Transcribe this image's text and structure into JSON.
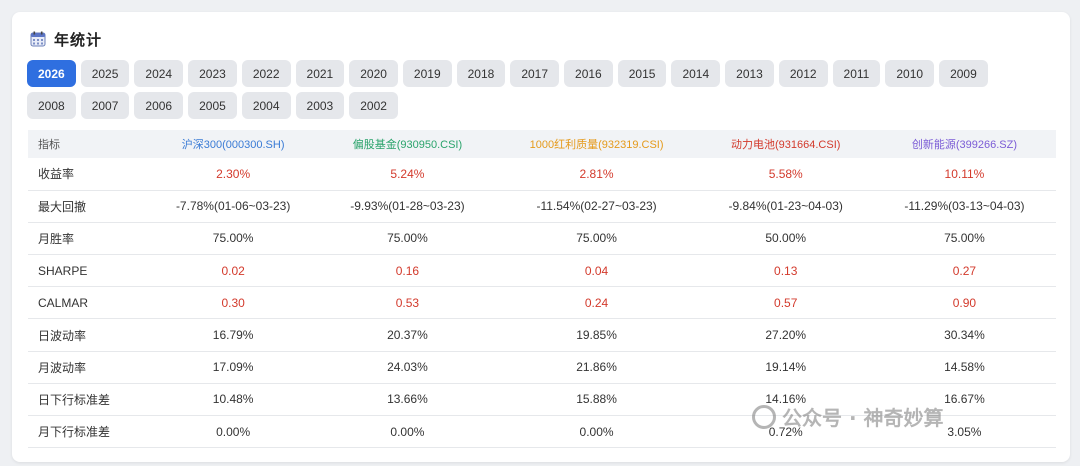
{
  "header": {
    "title": "年统计",
    "icon": "calendar-icon"
  },
  "years": [
    "2026",
    "2025",
    "2024",
    "2023",
    "2022",
    "2021",
    "2020",
    "2019",
    "2018",
    "2017",
    "2016",
    "2015",
    "2014",
    "2013",
    "2012",
    "2011",
    "2010",
    "2009",
    "2008",
    "2007",
    "2006",
    "2005",
    "2004",
    "2003",
    "2002"
  ],
  "active_year": "2026",
  "table": {
    "columns": [
      "指标",
      "沪深300(000300.SH)",
      "偏股基金(930950.CSI)",
      "1000红利质量(932319.CSI)",
      "动力电池(931664.CSI)",
      "创新能源(399266.SZ)"
    ],
    "column_colors": [
      "#555555",
      "#3a7bd5",
      "#2aa36b",
      "#e59a1b",
      "#d33a2c",
      "#7b5cd6"
    ],
    "rows": [
      {
        "label": "收益率",
        "values": [
          "2.30%",
          "5.24%",
          "2.81%",
          "5.58%",
          "10.11%"
        ],
        "red": true
      },
      {
        "label": "最大回撤",
        "values": [
          "-7.78%(01-06~03-23)",
          "-9.93%(01-28~03-23)",
          "-11.54%(02-27~03-23)",
          "-9.84%(01-23~04-03)",
          "-11.29%(03-13~04-03)"
        ],
        "red": false
      },
      {
        "label": "月胜率",
        "values": [
          "75.00%",
          "75.00%",
          "75.00%",
          "50.00%",
          "75.00%"
        ],
        "red": false
      },
      {
        "label": "SHARPE",
        "values": [
          "0.02",
          "0.16",
          "0.04",
          "0.13",
          "0.27"
        ],
        "red": true
      },
      {
        "label": "CALMAR",
        "values": [
          "0.30",
          "0.53",
          "0.24",
          "0.57",
          "0.90"
        ],
        "red": true
      },
      {
        "label": "日波动率",
        "values": [
          "16.79%",
          "20.37%",
          "19.85%",
          "27.20%",
          "30.34%"
        ],
        "red": false
      },
      {
        "label": "月波动率",
        "values": [
          "17.09%",
          "24.03%",
          "21.86%",
          "19.14%",
          "14.58%"
        ],
        "red": false
      },
      {
        "label": "日下行标准差",
        "values": [
          "10.48%",
          "13.66%",
          "15.88%",
          "14.16%",
          "16.67%"
        ],
        "red": false
      },
      {
        "label": "月下行标准差",
        "values": [
          "0.00%",
          "0.00%",
          "0.00%",
          "0.72%",
          "3.05%"
        ],
        "red": false
      }
    ]
  },
  "watermark": {
    "text": "公众号 · 神奇妙算"
  }
}
